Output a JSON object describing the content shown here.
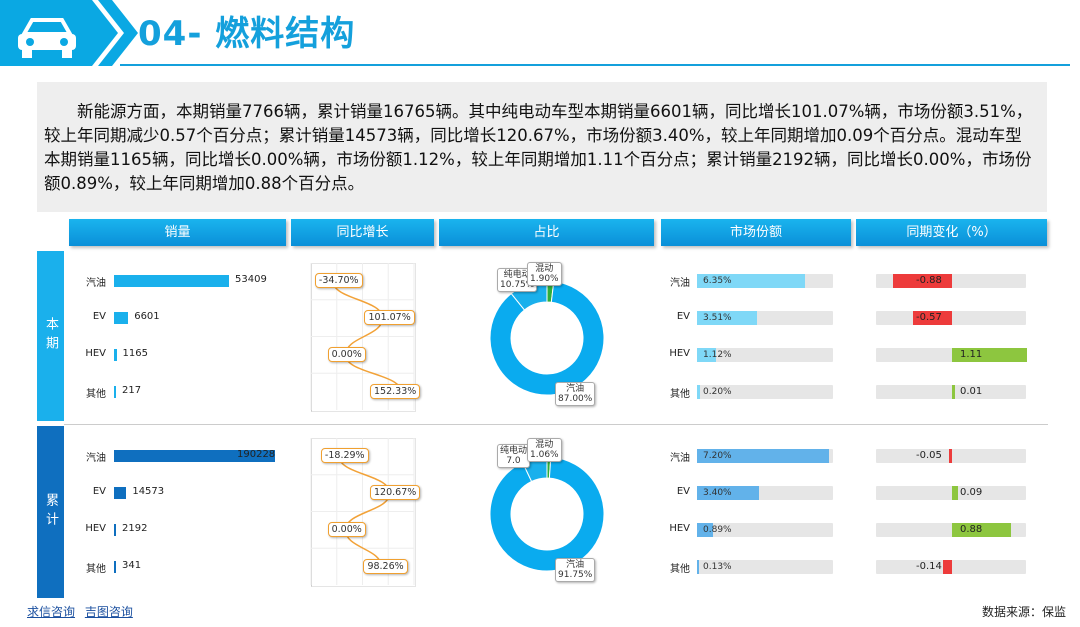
{
  "header": {
    "title": "04- 燃料结构",
    "logo": "car-icon"
  },
  "summary": "新能源方面，本期销量7766辆，累计销量16765辆。其中纯电动车型本期销量6601辆，同比增长101.07%辆，市场份额3.51%，较上年同期减少0.57个百分点；累计销量14573辆，同比增长120.67%，市场份额3.40%，较上年同期增加0.09个百分点。混动车型本期销量1165辆，同比增长0.00%辆，市场份额1.12%，较上年同期增加1.11个百分点；累计销量2192辆，同比增长0.00%，市场份额0.89%，较上年同期增加0.88个百分点。",
  "columns": [
    "销量",
    "同比增长",
    "占比",
    "市场份额",
    "同期变化（%）"
  ],
  "rows": [
    "本期",
    "累计"
  ],
  "colors": {
    "current": "#1ab0ec",
    "cumulative": "#0f6fbf",
    "positive": "#8dc63f",
    "negative": "#ed3b3b",
    "share_current": "#7fd8f7",
    "share_cumulative": "#62b2ea"
  },
  "chart_data": [
    {
      "type": "bar",
      "name": "本期销量",
      "categories": [
        "汽油",
        "EV",
        "HEV",
        "其他"
      ],
      "values": [
        53409,
        6601,
        1165,
        217
      ],
      "labels": [
        "53409",
        "6601",
        "1165",
        "217"
      ]
    },
    {
      "type": "line",
      "name": "本期同比增长",
      "categories": [
        "汽油",
        "EV",
        "HEV",
        "其他"
      ],
      "values": [
        -34.7,
        101.07,
        0.0,
        152.33
      ],
      "labels": [
        "-34.70%",
        "101.07%",
        "0.00%",
        "152.33%"
      ]
    },
    {
      "type": "pie",
      "name": "本期占比",
      "slices": [
        {
          "label": "纯电动",
          "value": 10.75,
          "text": "10.75%",
          "color": "#1ab0ec"
        },
        {
          "label": "混动",
          "value": 1.9,
          "text": "1.90%",
          "color": "#2eae3a"
        },
        {
          "label": "汽油",
          "value": 87.0,
          "text": "87.00%",
          "color": "#0aabef"
        }
      ]
    },
    {
      "type": "bar",
      "name": "本期市场份额",
      "categories": [
        "汽油",
        "EV",
        "HEV",
        "其他"
      ],
      "values": [
        6.35,
        3.51,
        1.12,
        0.2
      ],
      "labels": [
        "6.35%",
        "3.51%",
        "1.12%",
        "0.20%"
      ],
      "max": 8
    },
    {
      "type": "bar",
      "name": "本期同期变化",
      "categories": [
        "汽油",
        "EV",
        "HEV",
        "其他"
      ],
      "values": [
        -0.88,
        -0.57,
        1.11,
        0.01
      ],
      "labels": [
        "-0.88",
        "-0.57",
        "1.11",
        "0.01"
      ]
    },
    {
      "type": "bar",
      "name": "累计销量",
      "categories": [
        "汽油",
        "EV",
        "HEV",
        "其他"
      ],
      "values": [
        190228,
        14573,
        2192,
        341
      ],
      "labels": [
        "190228",
        "14573",
        "2192",
        "341"
      ]
    },
    {
      "type": "line",
      "name": "累计同比增长",
      "categories": [
        "汽油",
        "EV",
        "HEV",
        "其他"
      ],
      "values": [
        -18.29,
        120.67,
        0.0,
        98.26
      ],
      "labels": [
        "-18.29%",
        "120.67%",
        "0.00%",
        "98.26%"
      ]
    },
    {
      "type": "pie",
      "name": "累计占比",
      "slices": [
        {
          "label": "纯电动",
          "value": 7.03,
          "text": "7.0",
          "color": "#1ab0ec"
        },
        {
          "label": "混动",
          "value": 1.06,
          "text": "1.06%",
          "color": "#2eae3a"
        },
        {
          "label": "汽油",
          "value": 91.75,
          "text": "91.75%",
          "color": "#0aabef"
        }
      ]
    },
    {
      "type": "bar",
      "name": "累计市场份额",
      "categories": [
        "汽油",
        "EV",
        "HEV",
        "其他"
      ],
      "values": [
        7.2,
        3.4,
        0.89,
        0.13
      ],
      "labels": [
        "7.20%",
        "3.40%",
        "0.89%",
        "0.13%"
      ],
      "max": 7.4
    },
    {
      "type": "bar",
      "name": "累计同期变化",
      "categories": [
        "汽油",
        "EV",
        "HEV",
        "其他"
      ],
      "values": [
        -0.05,
        0.09,
        0.88,
        -0.14
      ],
      "labels": [
        "-0.05",
        "0.09",
        "0.88",
        "-0.14"
      ]
    }
  ],
  "footer": {
    "links": [
      "求信咨询",
      "吉图咨询"
    ],
    "source": "数据来源：保监"
  }
}
